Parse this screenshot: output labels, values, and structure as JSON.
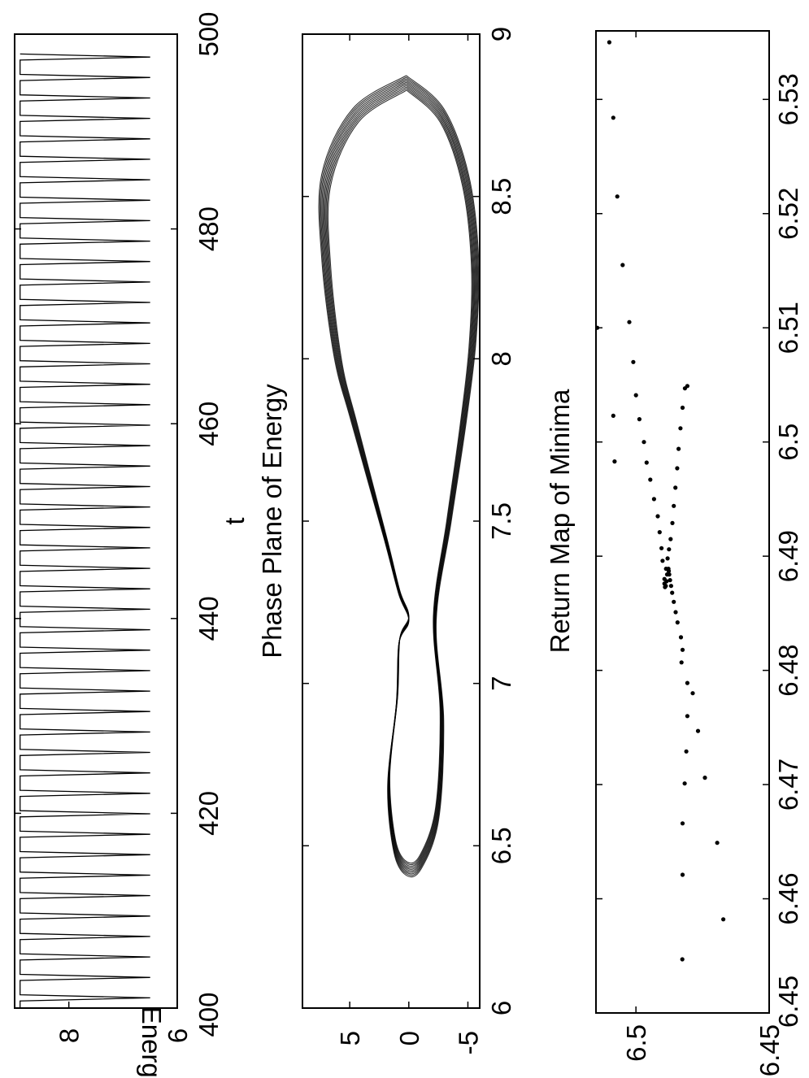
{
  "figure": {
    "panels": [
      {
        "title": "",
        "ylabel": "Energy",
        "xlabel": "t"
      },
      {
        "title": "Phase Plane of Energy",
        "ylabel": "",
        "xlabel": ""
      },
      {
        "title": "Return Map of Minima",
        "ylabel": "",
        "xlabel": ""
      }
    ]
  },
  "chart_data": [
    {
      "type": "line",
      "title": "",
      "xlabel": "t",
      "ylabel": "Energy",
      "xlim": [
        400,
        500
      ],
      "ylim": [
        6,
        9
      ],
      "xticks": [
        "400",
        "420",
        "440",
        "460",
        "480",
        "500"
      ],
      "yticks": [
        "6",
        "8"
      ],
      "series": [
        {
          "period": 2.1,
          "min": 6.5,
          "max": 8.9,
          "dip_width_fraction": 0.3,
          "x_start": 400,
          "x_end": 500
        }
      ]
    },
    {
      "type": "line",
      "title": "Phase Plane of Energy",
      "xlabel": "",
      "ylabel": "",
      "xlim": [
        6,
        9
      ],
      "ylim": [
        -6,
        9
      ],
      "xticks": [
        "6",
        "6.5",
        "7",
        "7.5",
        "8",
        "8.5",
        "9"
      ],
      "yticks": [
        "5",
        "0",
        "-5"
      ],
      "series": [
        {
          "x": [
            8.85,
            8.75,
            8.55,
            8.3,
            8.05,
            7.8,
            7.5,
            7.2,
            6.9,
            6.6,
            6.45,
            6.43,
            6.5,
            6.7,
            6.95,
            7.13,
            7.2,
            7.28,
            7.45,
            7.8,
            8.0,
            8.3,
            8.55,
            8.75,
            8.85
          ],
          "y": [
            0.2,
            -2.8,
            -4.8,
            -5.6,
            -5.4,
            -4.6,
            -3.4,
            -2.2,
            -2.8,
            -2.4,
            -1.0,
            0.2,
            1.2,
            1.7,
            1.0,
            0.8,
            0.0,
            0.8,
            2.0,
            4.6,
            6.0,
            7.0,
            7.0,
            4.5,
            0.2
          ],
          "n_overlaid_cycles": 10
        }
      ]
    },
    {
      "type": "scatter",
      "title": "Return Map of Minima",
      "xlabel": "",
      "ylabel": "",
      "xlim": [
        6.45,
        6.536
      ],
      "ylim": [
        6.45,
        6.515
      ],
      "xticks": [
        "6.45",
        "6.46",
        "6.47",
        "6.48",
        "6.49",
        "6.5",
        "6.51",
        "6.52",
        "6.53"
      ],
      "yticks": [
        "6.45",
        "6.5"
      ],
      "points": [
        [
          6.4547,
          6.4826
        ],
        [
          6.4582,
          6.4672
        ],
        [
          6.4621,
          6.4825
        ],
        [
          6.4649,
          6.4695
        ],
        [
          6.4666,
          6.4825
        ],
        [
          6.4701,
          6.4817
        ],
        [
          6.4706,
          6.4741
        ],
        [
          6.4729,
          6.4811
        ],
        [
          6.4747,
          6.4767
        ],
        [
          6.476,
          6.4807
        ],
        [
          6.478,
          6.4787
        ],
        [
          6.4789,
          6.4807
        ],
        [
          6.4807,
          6.4829
        ],
        [
          6.4818,
          6.4825
        ],
        [
          6.4829,
          6.4831
        ],
        [
          6.4842,
          6.4844
        ],
        [
          6.4851,
          6.4851
        ],
        [
          6.486,
          6.4858
        ],
        [
          6.4868,
          6.4864
        ],
        [
          6.4874,
          6.4868
        ],
        [
          6.4879,
          6.4872
        ],
        [
          6.4884,
          6.4875
        ],
        [
          6.4887,
          6.4877
        ],
        [
          6.4889,
          6.4878
        ],
        [
          6.4884,
          6.4883
        ],
        [
          6.4878,
          6.4885
        ],
        [
          6.4874,
          6.4888
        ],
        [
          6.4873,
          6.4891
        ],
        [
          6.4876,
          6.4893
        ],
        [
          6.488,
          6.4893
        ],
        [
          6.4889,
          6.4887
        ],
        [
          6.4898,
          6.4881
        ],
        [
          6.4906,
          6.4876
        ],
        [
          6.4915,
          6.487
        ],
        [
          6.4929,
          6.4863
        ],
        [
          6.4944,
          6.4858
        ],
        [
          6.496,
          6.4852
        ],
        [
          6.4977,
          6.4845
        ],
        [
          6.4994,
          6.484
        ],
        [
          6.5012,
          6.4833
        ],
        [
          6.503,
          6.4825
        ],
        [
          6.5047,
          6.4816
        ],
        [
          6.5049,
          6.4807
        ],
        [
          6.4896,
          6.49
        ],
        [
          6.4907,
          6.4904
        ],
        [
          6.4921,
          6.4911
        ],
        [
          6.4935,
          6.4918
        ],
        [
          6.495,
          6.4932
        ],
        [
          6.4967,
          6.4946
        ],
        [
          6.4982,
          6.496
        ],
        [
          6.5,
          6.497
        ],
        [
          6.502,
          6.4987
        ],
        [
          6.5041,
          6.5
        ],
        [
          6.507,
          6.501
        ],
        [
          6.5105,
          6.5025
        ],
        [
          6.5155,
          6.505
        ],
        [
          6.5215,
          6.507
        ],
        [
          6.5284,
          6.5085
        ],
        [
          6.535,
          6.51
        ],
        [
          6.4983,
          6.508
        ],
        [
          6.5023,
          6.5085
        ],
        [
          6.51,
          6.5145
        ]
      ]
    }
  ]
}
